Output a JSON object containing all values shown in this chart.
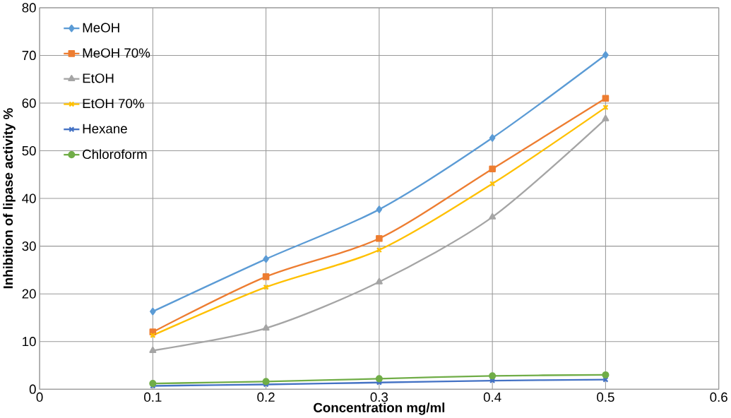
{
  "chart_data": {
    "type": "line",
    "xlabel": "Concentration mg/ml",
    "ylabel": "Inhibition of lipase activity %",
    "x": [
      0.1,
      0.2,
      0.3,
      0.4,
      0.5
    ],
    "series": [
      {
        "name": "MeOH",
        "color": "#5b9bd5",
        "marker": "diamond",
        "values": [
          16.3,
          27.3,
          37.7,
          52.7,
          70.1
        ]
      },
      {
        "name": "MeOH 70%",
        "color": "#ed7d31",
        "marker": "square",
        "values": [
          12.0,
          23.6,
          31.6,
          46.2,
          61.0
        ]
      },
      {
        "name": "EtOH",
        "color": "#a5a5a5",
        "marker": "triangle",
        "values": [
          8.1,
          12.8,
          22.5,
          36.1,
          56.7
        ]
      },
      {
        "name": "EtOH 70%",
        "color": "#ffc000",
        "marker": "cross",
        "values": [
          11.3,
          21.4,
          29.2,
          43.1,
          59.1
        ]
      },
      {
        "name": "Hexane",
        "color": "#4472c4",
        "marker": "cross",
        "values": [
          0.7,
          1.0,
          1.4,
          1.8,
          2.0
        ]
      },
      {
        "name": "Chloroform",
        "color": "#70ad47",
        "marker": "circle",
        "values": [
          1.2,
          1.6,
          2.2,
          2.8,
          3.0
        ]
      }
    ],
    "xlim": [
      0,
      0.6
    ],
    "xticks": [
      0,
      0.1,
      0.2,
      0.3,
      0.4,
      0.5,
      0.6
    ],
    "ylim": [
      0,
      80
    ],
    "yticks": [
      0,
      10,
      20,
      30,
      40,
      50,
      60,
      70,
      80
    ],
    "grid": true,
    "legend": "top left",
    "line_style": "solid"
  }
}
